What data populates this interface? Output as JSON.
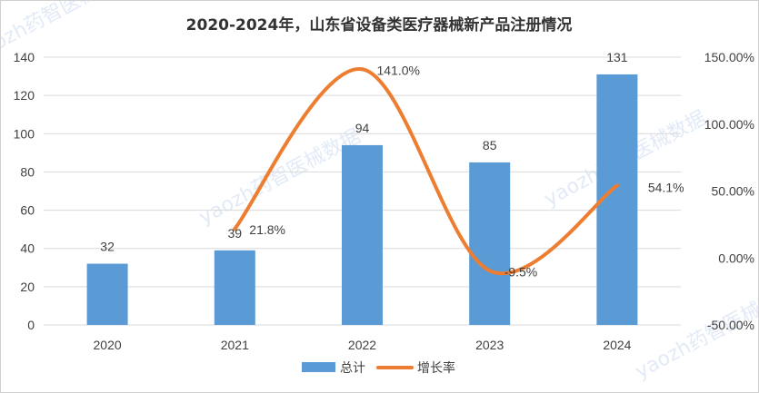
{
  "chart_data": {
    "type": "bar",
    "title": "2020-2024年，山东省设备类医疗器械新产品注册情况",
    "categories": [
      "2020",
      "2021",
      "2022",
      "2023",
      "2024"
    ],
    "series": [
      {
        "name": "总计",
        "kind": "bar",
        "axis": "left",
        "values": [
          32,
          39,
          94,
          85,
          131
        ],
        "labels": [
          "32",
          "39",
          "94",
          "85",
          "131"
        ]
      },
      {
        "name": "增长率",
        "kind": "line",
        "axis": "right",
        "values": [
          null,
          21.8,
          141.0,
          -9.5,
          54.1
        ],
        "labels": [
          "",
          "21.8%",
          "141.0%",
          "-9.5%",
          "54.1%"
        ]
      }
    ],
    "y_left": {
      "min": 0,
      "max": 140,
      "step": 20,
      "ticks": [
        "0",
        "20",
        "40",
        "60",
        "80",
        "100",
        "120",
        "140"
      ]
    },
    "y_right": {
      "min": -50,
      "max": 150,
      "step": 50,
      "ticks": [
        "-50.00%",
        "0.00%",
        "50.00%",
        "100.00%",
        "150.00%"
      ]
    },
    "grid": true,
    "legend_position": "bottom",
    "colors": {
      "bar": "#5b9bd5",
      "line": "#ed7d31"
    }
  },
  "watermark": {
    "text": "yaozh药智医械数据"
  }
}
